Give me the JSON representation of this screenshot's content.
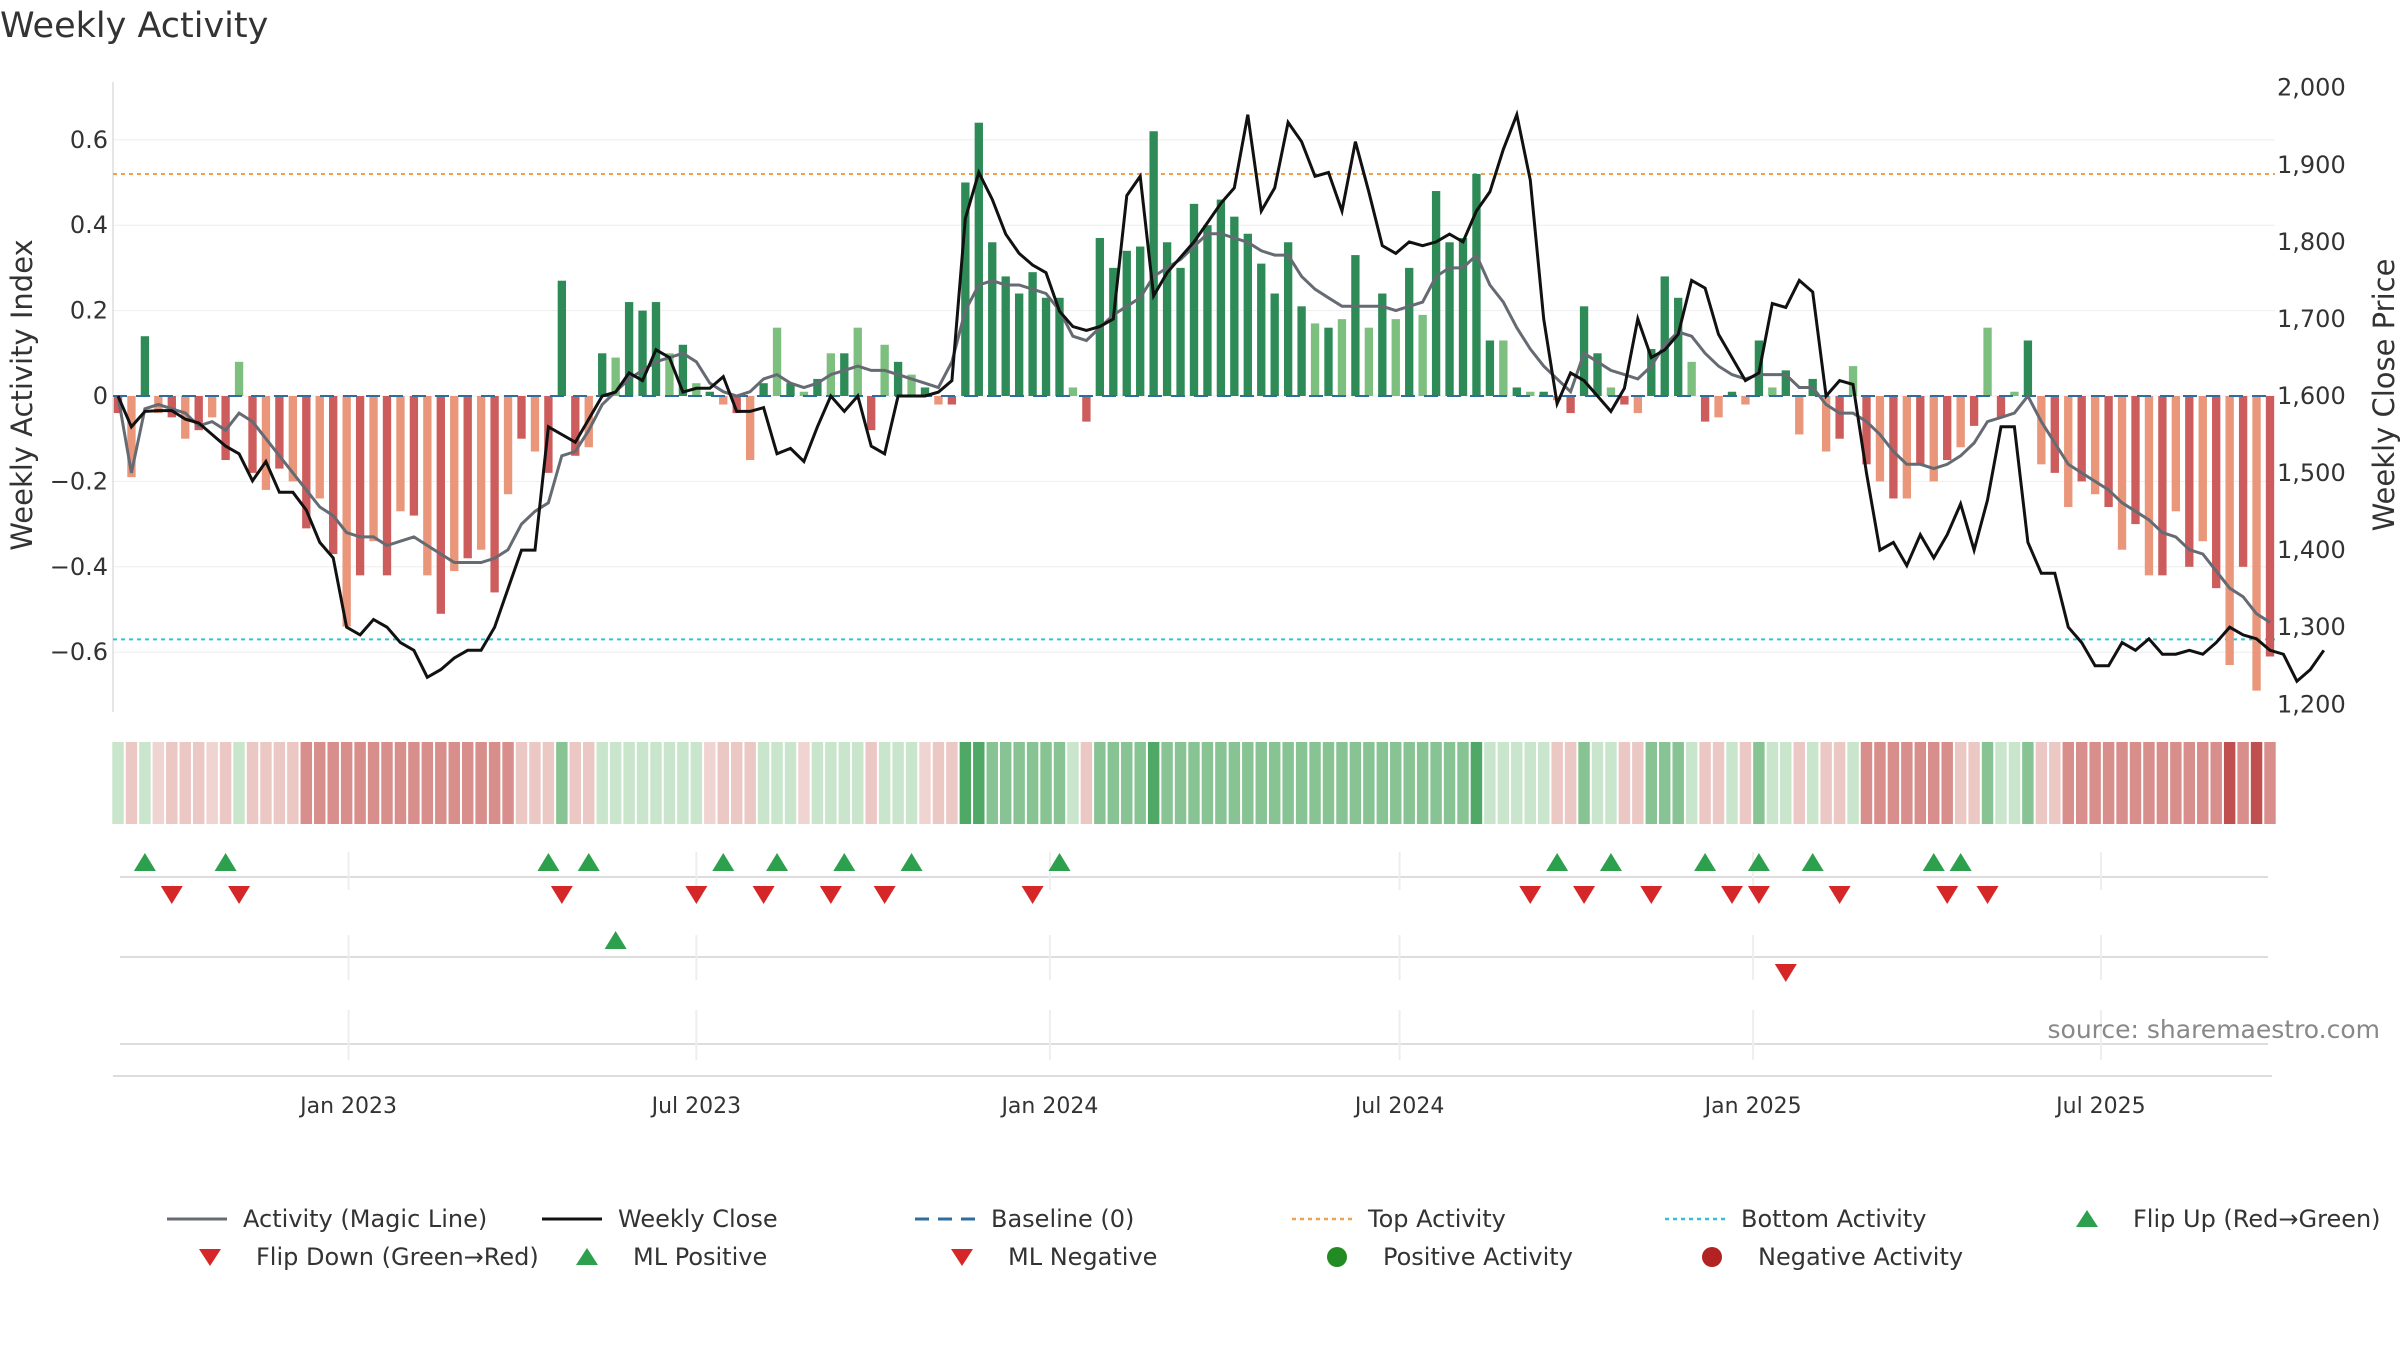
{
  "title": "Weekly Activity",
  "source": "source: sharemaestro.com",
  "chart_data": {
    "type": "bar",
    "title": "Weekly Activity",
    "ylabel": "Weekly Activity Index",
    "y2label": "Weekly Close Price",
    "ylim": [
      -0.74,
      0.74
    ],
    "y2lim": [
      1190,
      2010
    ],
    "yticks": [
      "0.6",
      "0.4",
      "0.2",
      "0",
      "−0.2",
      "−0.4",
      "−0.6"
    ],
    "ytick_values": [
      0.6,
      0.4,
      0.2,
      0,
      -0.2,
      -0.4,
      -0.6
    ],
    "y2ticks": [
      "2,000",
      "1,900",
      "1,800",
      "1,700",
      "1,600",
      "1,500",
      "1,400",
      "1,300",
      "1,200"
    ],
    "y2tick_values": [
      2000,
      1900,
      1800,
      1700,
      1600,
      1500,
      1400,
      1300,
      1200
    ],
    "xticks": [
      "Jan 2023",
      "Jul 2023",
      "Jan 2024",
      "Jul 2024",
      "Jan 2025",
      "Jul 2025"
    ],
    "xtick_dates": [
      "2023-01-01",
      "2023-07-01",
      "2024-01-01",
      "2024-07-01",
      "2025-01-01",
      "2025-07-01"
    ],
    "first_week": "2022-09-03",
    "top_activity": 0.52,
    "bottom_activity": -0.57,
    "baseline": 0,
    "activity": [
      -0.04,
      -0.19,
      0.14,
      -0.04,
      -0.05,
      -0.1,
      -0.08,
      -0.05,
      -0.15,
      0.08,
      -0.18,
      -0.22,
      -0.17,
      -0.2,
      -0.31,
      -0.24,
      -0.37,
      -0.54,
      -0.42,
      -0.34,
      -0.42,
      -0.27,
      -0.28,
      -0.42,
      -0.51,
      -0.41,
      -0.38,
      -0.36,
      -0.46,
      -0.23,
      -0.1,
      -0.13,
      -0.18,
      0.27,
      -0.14,
      -0.12,
      0.1,
      0.09,
      0.22,
      0.2,
      0.22,
      0.1,
      0.12,
      0.03,
      0.01,
      -0.02,
      -0.04,
      -0.15,
      0.03,
      0.16,
      0.03,
      0.01,
      0.04,
      0.1,
      0.1,
      0.16,
      -0.08,
      0.12,
      0.08,
      0.05,
      0.02,
      -0.02,
      -0.02,
      0.5,
      0.64,
      0.36,
      0.28,
      0.24,
      0.29,
      0.23,
      0.23,
      0.02,
      -0.06,
      0.37,
      0.3,
      0.34,
      0.35,
      0.62,
      0.36,
      0.3,
      0.45,
      0.4,
      0.46,
      0.42,
      0.38,
      0.31,
      0.24,
      0.36,
      0.21,
      0.17,
      0.16,
      0.18,
      0.33,
      0.16,
      0.24,
      0.18,
      0.3,
      0.19,
      0.48,
      0.36,
      0.37,
      0.52,
      0.13,
      0.13,
      0.02,
      0.01,
      0.01,
      -0.01,
      -0.04,
      0.21,
      0.1,
      0.02,
      -0.02,
      -0.04,
      0.11,
      0.28,
      0.23,
      0.08,
      -0.06,
      -0.05,
      0.01,
      -0.02,
      0.13,
      0.02,
      0.06,
      -0.09,
      0.04,
      -0.13,
      -0.1,
      0.07,
      -0.16,
      -0.2,
      -0.24,
      -0.24,
      -0.16,
      -0.2,
      -0.15,
      -0.12,
      -0.07,
      0.16,
      -0.05,
      0.01,
      0.13,
      -0.16,
      -0.18,
      -0.26,
      -0.2,
      -0.23,
      -0.26,
      -0.36,
      -0.3,
      -0.42,
      -0.42,
      -0.27,
      -0.4,
      -0.34,
      -0.45,
      -0.63,
      -0.4,
      -0.69,
      -0.61
    ],
    "magic_line": [
      0.0,
      -0.18,
      -0.03,
      -0.02,
      -0.03,
      -0.04,
      -0.07,
      -0.06,
      -0.08,
      -0.04,
      -0.06,
      -0.1,
      -0.14,
      -0.18,
      -0.22,
      -0.26,
      -0.28,
      -0.32,
      -0.33,
      -0.33,
      -0.35,
      -0.34,
      -0.33,
      -0.35,
      -0.37,
      -0.39,
      -0.39,
      -0.39,
      -0.38,
      -0.36,
      -0.3,
      -0.27,
      -0.25,
      -0.14,
      -0.13,
      -0.08,
      -0.02,
      0.01,
      0.04,
      0.06,
      0.08,
      0.09,
      0.1,
      0.08,
      0.03,
      0.01,
      0.0,
      0.01,
      0.04,
      0.05,
      0.03,
      0.02,
      0.03,
      0.05,
      0.06,
      0.07,
      0.06,
      0.06,
      0.05,
      0.04,
      0.03,
      0.02,
      0.08,
      0.2,
      0.26,
      0.27,
      0.26,
      0.26,
      0.25,
      0.24,
      0.2,
      0.14,
      0.13,
      0.16,
      0.19,
      0.21,
      0.23,
      0.28,
      0.3,
      0.32,
      0.35,
      0.38,
      0.38,
      0.37,
      0.36,
      0.34,
      0.33,
      0.33,
      0.28,
      0.25,
      0.23,
      0.21,
      0.21,
      0.21,
      0.21,
      0.2,
      0.21,
      0.22,
      0.28,
      0.3,
      0.3,
      0.33,
      0.26,
      0.22,
      0.16,
      0.11,
      0.07,
      0.04,
      0.01,
      0.1,
      0.08,
      0.06,
      0.05,
      0.04,
      0.07,
      0.12,
      0.15,
      0.14,
      0.1,
      0.07,
      0.05,
      0.04,
      0.05,
      0.05,
      0.05,
      0.02,
      0.02,
      -0.02,
      -0.04,
      -0.04,
      -0.06,
      -0.09,
      -0.13,
      -0.16,
      -0.16,
      -0.17,
      -0.16,
      -0.14,
      -0.11,
      -0.06,
      -0.05,
      -0.04,
      0.0,
      -0.06,
      -0.11,
      -0.16,
      -0.18,
      -0.2,
      -0.22,
      -0.25,
      -0.27,
      -0.29,
      -0.32,
      -0.33,
      -0.36,
      -0.37,
      -0.41,
      -0.45,
      -0.47,
      -0.51,
      -0.53
    ],
    "weekly_close": [
      1600,
      1560,
      1580,
      1581,
      1581,
      1570,
      1565,
      1550,
      1535,
      1525,
      1490,
      1515,
      1475,
      1475,
      1452,
      1410,
      1390,
      1300,
      1290,
      1310,
      1300,
      1280,
      1270,
      1235,
      1245,
      1260,
      1270,
      1270,
      1300,
      1350,
      1400,
      1400,
      1560,
      1550,
      1540,
      1570,
      1600,
      1605,
      1630,
      1620,
      1660,
      1650,
      1605,
      1610,
      1610,
      1625,
      1580,
      1580,
      1585,
      1525,
      1532,
      1515,
      1560,
      1600,
      1580,
      1600,
      1535,
      1525,
      1600,
      1600,
      1600,
      1605,
      1620,
      1830,
      1890,
      1855,
      1810,
      1785,
      1770,
      1760,
      1710,
      1690,
      1685,
      1690,
      1700,
      1860,
      1885,
      1730,
      1760,
      1780,
      1800,
      1825,
      1850,
      1870,
      1965,
      1840,
      1870,
      1955,
      1930,
      1885,
      1890,
      1840,
      1930,
      1865,
      1795,
      1785,
      1800,
      1795,
      1800,
      1810,
      1800,
      1840,
      1865,
      1920,
      1965,
      1880,
      1700,
      1590,
      1630,
      1620,
      1600,
      1580,
      1610,
      1700,
      1650,
      1660,
      1680,
      1750,
      1740,
      1680,
      1650,
      1620,
      1630,
      1720,
      1715,
      1750,
      1735,
      1600,
      1620,
      1615,
      1500,
      1400,
      1410,
      1380,
      1420,
      1390,
      1420,
      1460,
      1400,
      1465,
      1560,
      1560,
      1410,
      1370,
      1370,
      1300,
      1280,
      1250,
      1250,
      1280,
      1270,
      1285,
      1265,
      1265,
      1270,
      1265,
      1280,
      1300,
      1290,
      1285,
      1270,
      1265,
      1230,
      1245,
      1270
    ],
    "background_level": [
      1,
      -1,
      1,
      0,
      -1,
      -1,
      -1,
      0,
      -1,
      1,
      -1,
      -1,
      -1,
      -1,
      -2,
      -2,
      -2,
      -2,
      -2,
      -2,
      -2,
      -2,
      -2,
      -2,
      -2,
      -2,
      -2,
      -2,
      -2,
      -2,
      -1,
      -1,
      -1,
      2,
      -1,
      -1,
      1,
      1,
      1,
      1,
      1,
      1,
      1,
      1,
      0,
      -1,
      -1,
      -1,
      1,
      1,
      1,
      0,
      1,
      1,
      1,
      1,
      -1,
      1,
      1,
      1,
      0,
      -1,
      -1,
      3,
      3,
      2,
      2,
      2,
      2,
      2,
      2,
      1,
      -1,
      2,
      2,
      2,
      2,
      3,
      2,
      2,
      2,
      2,
      2,
      2,
      2,
      2,
      2,
      2,
      2,
      2,
      2,
      2,
      2,
      2,
      2,
      2,
      2,
      2,
      2,
      2,
      2,
      3,
      1,
      1,
      1,
      1,
      1,
      -1,
      -1,
      2,
      1,
      1,
      -1,
      -1,
      2,
      2,
      2,
      1,
      -1,
      -1,
      1,
      -1,
      2,
      1,
      1,
      -1,
      1,
      -1,
      -1,
      1,
      -2,
      -2,
      -2,
      -2,
      -2,
      -2,
      -2,
      -1,
      -1,
      2,
      1,
      1,
      2,
      -1,
      -1,
      -2,
      -2,
      -2,
      -2,
      -2,
      -2,
      -2,
      -2,
      -2,
      -2,
      -2,
      -2,
      -3,
      -2,
      -3,
      -2
    ],
    "flip_up_weeks": [
      2,
      8,
      32,
      35,
      45,
      49,
      54,
      59,
      70,
      107,
      111,
      118,
      122,
      126,
      135,
      137
    ],
    "flip_down_weeks": [
      4,
      9,
      33,
      43,
      48,
      53,
      57,
      68,
      105,
      109,
      114,
      120,
      122,
      128,
      136,
      139
    ],
    "ml_positive_weeks": [
      37
    ],
    "ml_negative_weeks": [
      124
    ],
    "legend": [
      {
        "label": "Activity (Magic Line)",
        "marker": "line",
        "color": "#666b73"
      },
      {
        "label": "Weekly Close",
        "marker": "line",
        "color": "#111111"
      },
      {
        "label": "Baseline (0)",
        "marker": "dash",
        "color": "#2f6d9e"
      },
      {
        "label": "Top Activity",
        "marker": "dot-line",
        "color": "#f0a150"
      },
      {
        "label": "Bottom Activity",
        "marker": "dot-line",
        "color": "#2ec5d3"
      },
      {
        "label": "Flip Up (Red→Green)",
        "marker": "tri-up",
        "color": "#2ca04c"
      },
      {
        "label": "Flip Down (Green→Red)",
        "marker": "tri-down",
        "color": "#d62728"
      },
      {
        "label": "ML Positive",
        "marker": "tri-up",
        "color": "#2ca04c"
      },
      {
        "label": "ML Negative",
        "marker": "tri-down",
        "color": "#d62728"
      },
      {
        "label": "Positive Activity",
        "marker": "circle",
        "color": "#228b22"
      },
      {
        "label": "Negative Activity",
        "marker": "circle",
        "color": "#b22222"
      }
    ],
    "colors": {
      "pos_strong": "#2e8b57",
      "pos_light": "#7cbf7e",
      "neg_strong": "#cd5c5c",
      "neg_light": "#e9967a",
      "magic_line": "#666b73",
      "close": "#111111"
    }
  }
}
